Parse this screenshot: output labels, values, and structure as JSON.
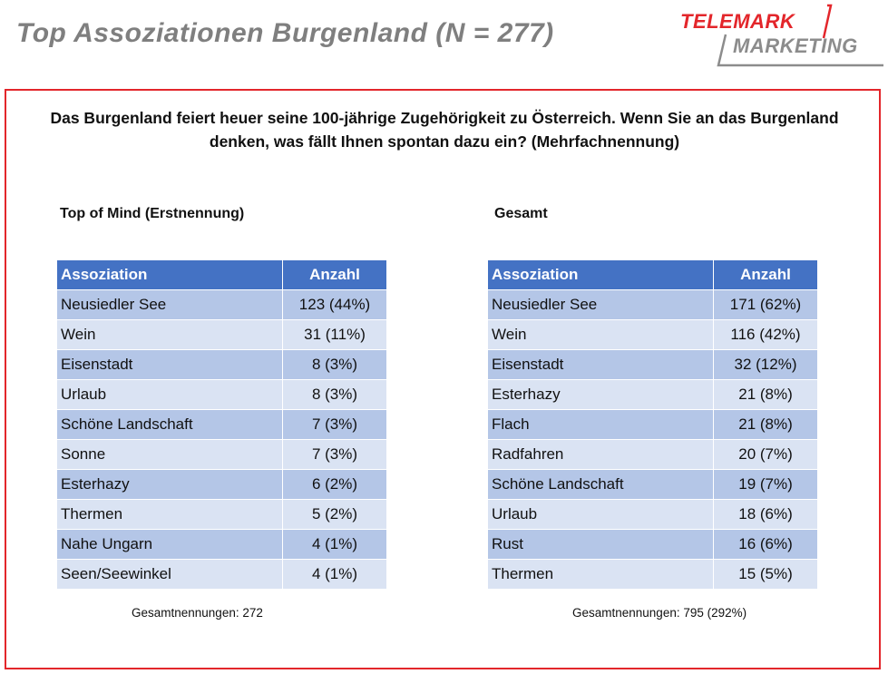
{
  "title": "Top Assoziationen Burgenland (N = 277)",
  "logo": {
    "line1": "TELEMARK",
    "line2": "MARKETING"
  },
  "question": "Das Burgenland feiert heuer seine 100-jährige Zugehörigkeit zu Österreich. Wenn Sie an das Burgenland denken, was fällt Ihnen spontan dazu ein? (Mehrfachnennung)",
  "colors": {
    "header": "#4472c4",
    "row_dark": "#b4c6e7",
    "row_light": "#dae3f3",
    "accent_red": "#e3262b",
    "title_grey": "#7f7f7f"
  },
  "left": {
    "label": "Top of Mind (Erstnennung)",
    "headers": [
      "Assoziation",
      "Anzahl"
    ],
    "rows": [
      [
        "Neusiedler See",
        "123 (44%)"
      ],
      [
        "Wein",
        "31 (11%)"
      ],
      [
        "Eisenstadt",
        "8 (3%)"
      ],
      [
        "Urlaub",
        "8 (3%)"
      ],
      [
        "Schöne Landschaft",
        "7 (3%)"
      ],
      [
        "Sonne",
        "7 (3%)"
      ],
      [
        "Esterhazy",
        "6 (2%)"
      ],
      [
        "Thermen",
        "5 (2%)"
      ],
      [
        "Nahe Ungarn",
        "4 (1%)"
      ],
      [
        "Seen/Seewinkel",
        "4 (1%)"
      ]
    ],
    "total": "Gesamtnennungen: 272"
  },
  "right": {
    "label": "Gesamt",
    "headers": [
      "Assoziation",
      "Anzahl"
    ],
    "rows": [
      [
        "Neusiedler See",
        "171 (62%)"
      ],
      [
        "Wein",
        "116 (42%)"
      ],
      [
        "Eisenstadt",
        "32 (12%)"
      ],
      [
        "Esterhazy",
        "21 (8%)"
      ],
      [
        "Flach",
        "21 (8%)"
      ],
      [
        "Radfahren",
        "20 (7%)"
      ],
      [
        "Schöne Landschaft",
        "19 (7%)"
      ],
      [
        "Urlaub",
        "18 (6%)"
      ],
      [
        "Rust",
        "16 (6%)"
      ],
      [
        "Thermen",
        "15 (5%)"
      ]
    ],
    "total": "Gesamtnennungen: 795 (292%)"
  }
}
